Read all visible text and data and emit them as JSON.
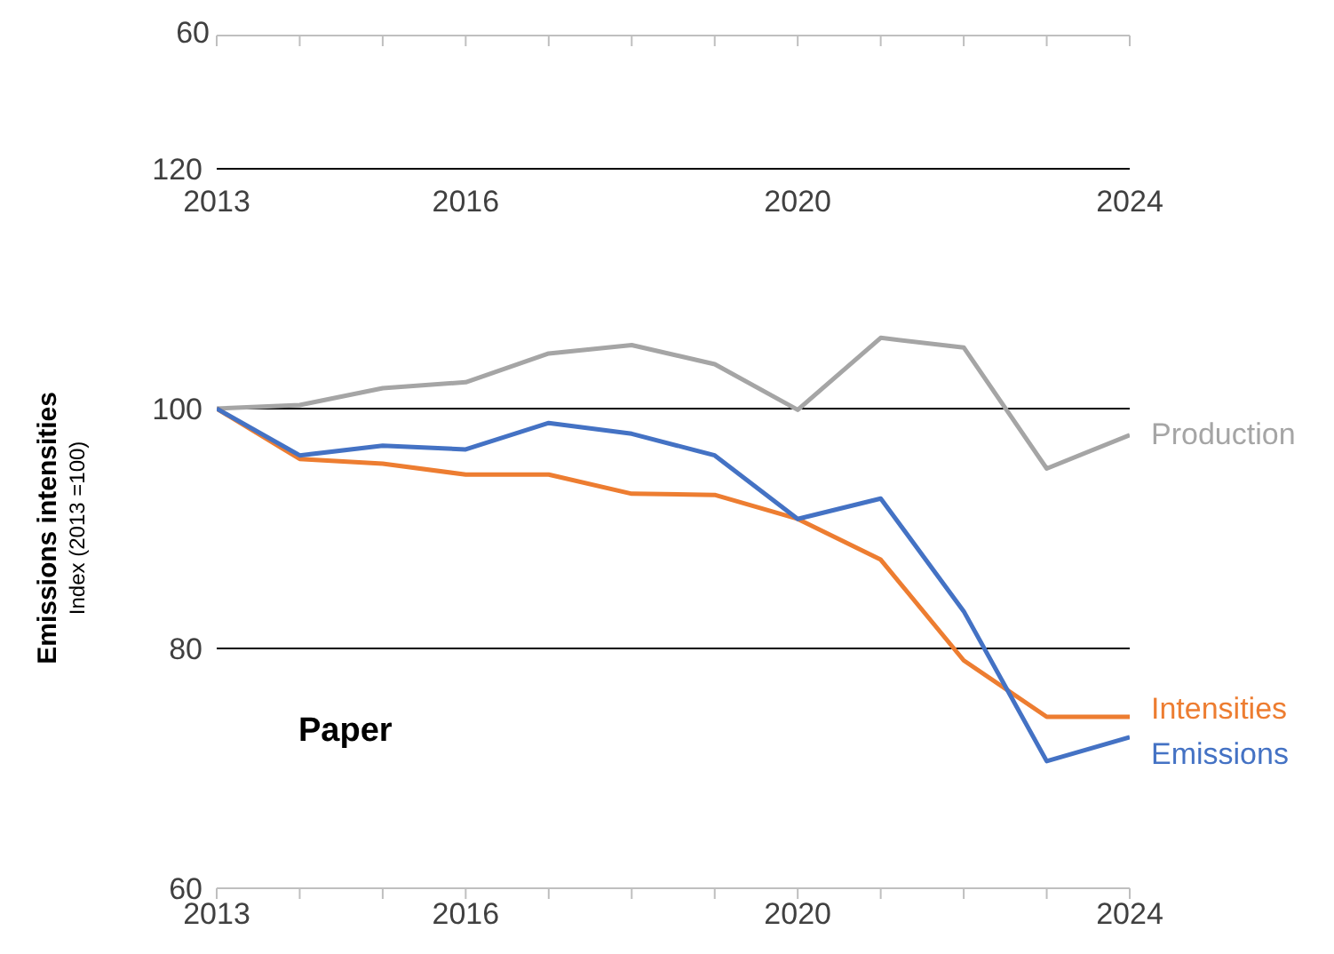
{
  "chart_data": {
    "type": "line",
    "title": "Paper",
    "ylabel": "Emissions intensities\nIndex (2013 =100)",
    "annotations": [
      "60"
    ],
    "x": [
      2013,
      2014,
      2015,
      2016,
      2017,
      2018,
      2019,
      2020,
      2021,
      2022,
      2023,
      2024
    ],
    "xlim": [
      2013,
      2024
    ],
    "xticks": [
      2013,
      {
        "value": 2014,
        "label": null
      },
      {
        "value": 2015,
        "label": null
      },
      2016,
      {
        "value": 2017,
        "label": null
      },
      {
        "value": 2018,
        "label": null
      },
      {
        "value": 2019,
        "label": null
      },
      2020,
      {
        "value": 2021,
        "label": null
      },
      {
        "value": 2022,
        "label": null
      },
      {
        "value": 2023,
        "label": null
      },
      2024
    ],
    "x2lim": [
      2013,
      2024
    ],
    "x2ticks": [
      2013,
      {
        "value": 2014,
        "label": null
      },
      {
        "value": 2015,
        "label": null
      },
      2016,
      {
        "value": 2017,
        "label": null
      },
      {
        "value": 2018,
        "label": null
      },
      {
        "value": 2019,
        "label": null
      },
      2020,
      {
        "value": 2021,
        "label": null
      },
      {
        "value": 2022,
        "label": null
      },
      {
        "value": 2023,
        "label": null
      },
      2024
    ],
    "ylim": [
      60,
      120
    ],
    "yticks": [
      60,
      80,
      100,
      120
    ],
    "grid": "y",
    "series": [
      {
        "name": "Production",
        "color": "#a5a5a5",
        "values": [
          100,
          100.3,
          101.7,
          102.2,
          104.6,
          105.3,
          103.7,
          99.9,
          105.9,
          105.1,
          95.0,
          97.8
        ]
      },
      {
        "name": "Intensities",
        "color": "#ed7d31",
        "values": [
          100,
          95.8,
          95.4,
          94.5,
          94.5,
          92.9,
          92.8,
          90.8,
          87.4,
          79.0,
          74.3,
          74.3
        ]
      },
      {
        "name": "Emissions",
        "color": "#4472c4",
        "values": [
          100,
          96.1,
          96.9,
          96.6,
          98.8,
          97.9,
          96.1,
          90.8,
          92.5,
          83.1,
          70.6,
          72.6
        ]
      }
    ]
  }
}
